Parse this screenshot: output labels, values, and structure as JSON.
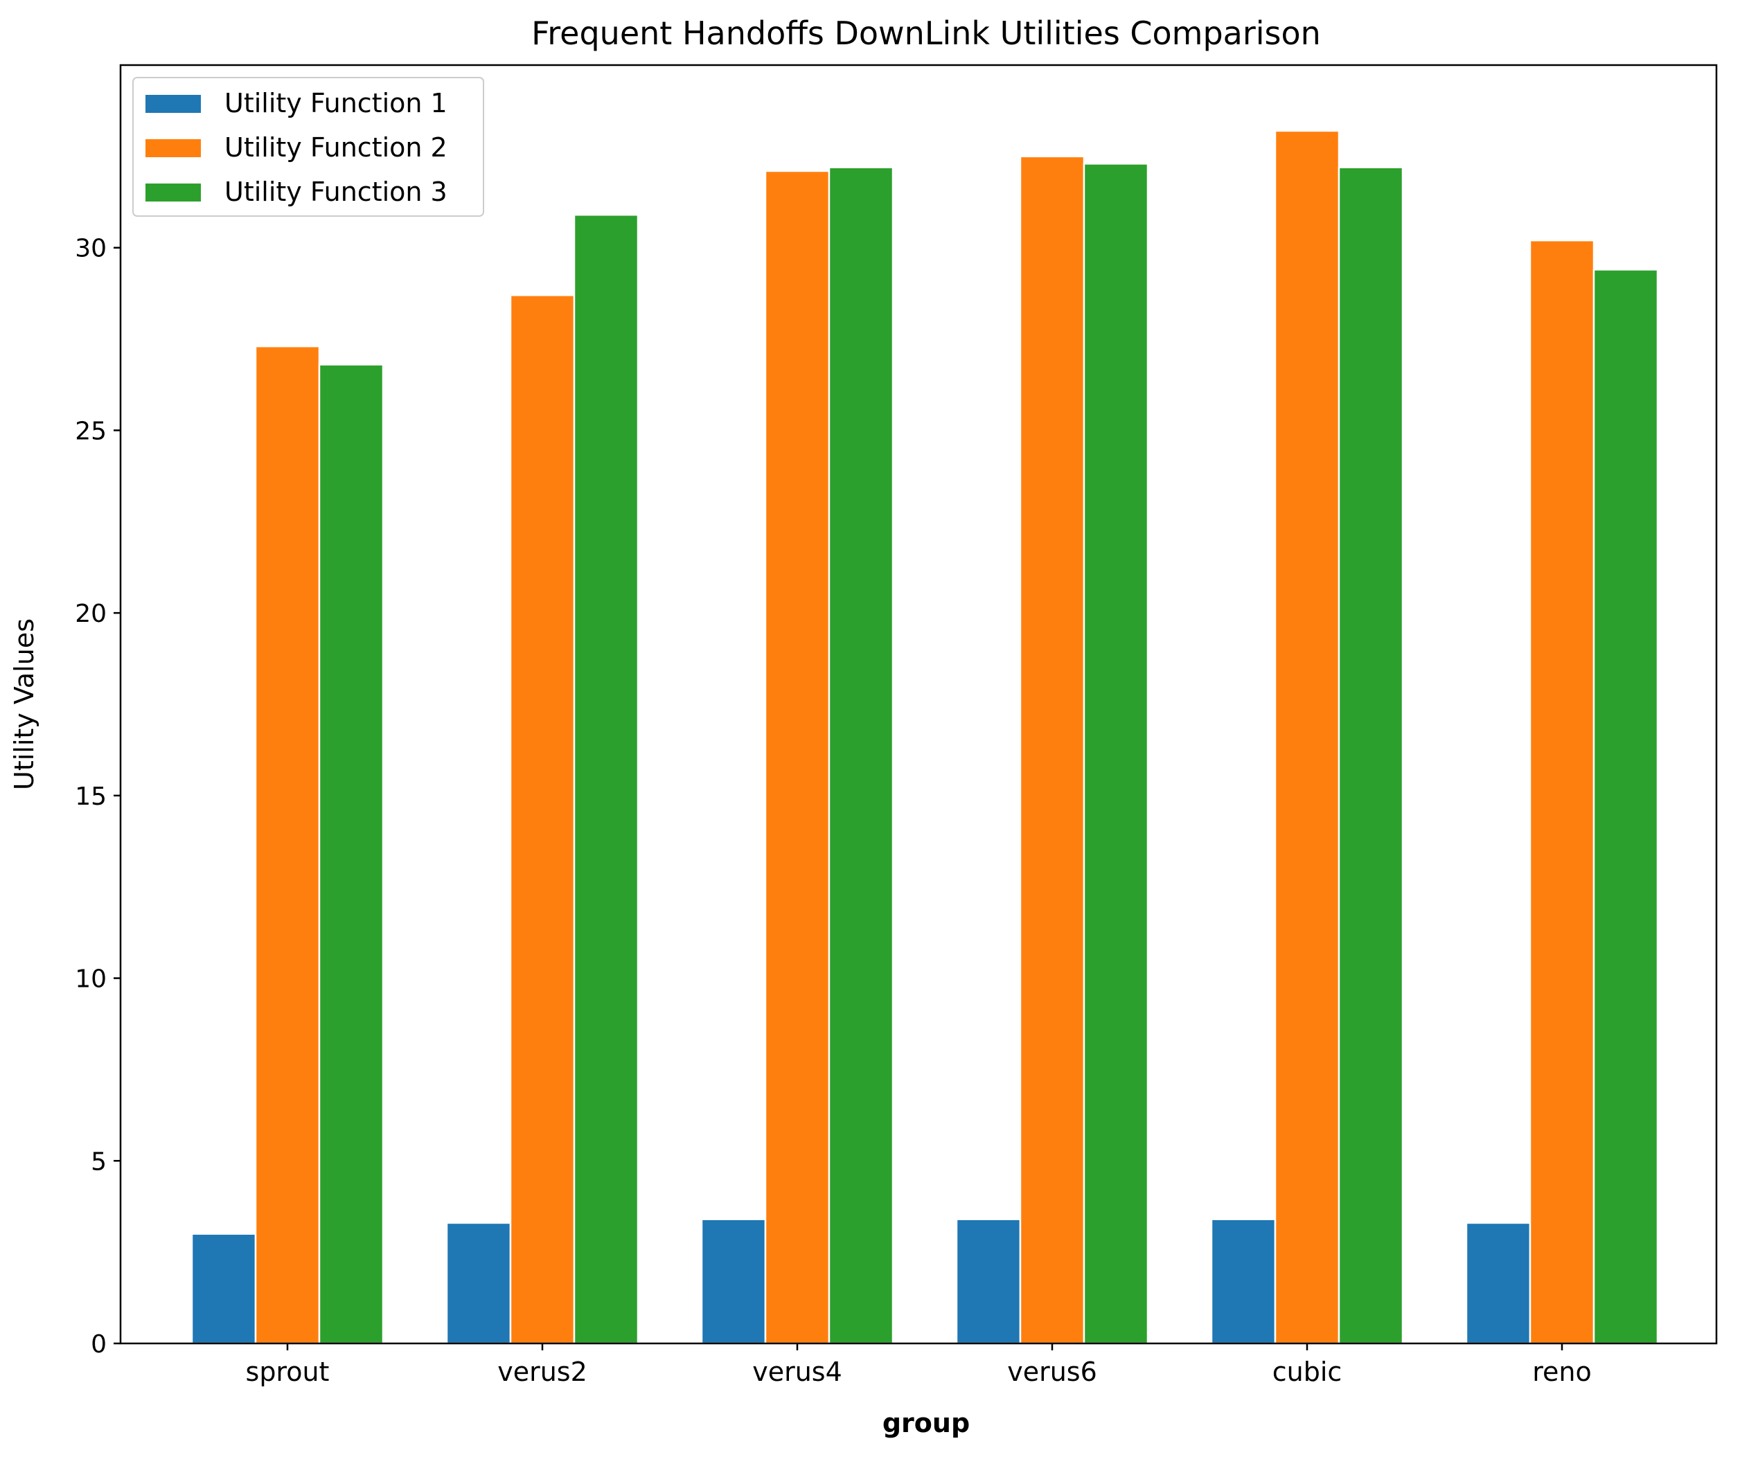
{
  "chart_data": {
    "type": "bar",
    "title": "Frequent Handoffs DownLink Utilities Comparison",
    "xlabel": "group",
    "ylabel": "Utility Values",
    "categories": [
      "sprout",
      "verus2",
      "verus4",
      "verus6",
      "cubic",
      "reno"
    ],
    "series": [
      {
        "name": "Utility Function 1",
        "color": "#1f77b4",
        "values": [
          3.0,
          3.3,
          3.4,
          3.4,
          3.4,
          3.3
        ]
      },
      {
        "name": "Utility Function 2",
        "color": "#ff7f0e",
        "values": [
          27.3,
          28.7,
          32.1,
          32.5,
          33.2,
          30.2
        ]
      },
      {
        "name": "Utility Function 3",
        "color": "#2ca02c",
        "values": [
          26.8,
          30.9,
          32.2,
          32.3,
          32.2,
          29.4
        ]
      }
    ],
    "ylim": [
      0,
      35
    ],
    "yticks": [
      0,
      5,
      10,
      15,
      20,
      25,
      30
    ],
    "grid": false,
    "legend_position": "top-left"
  }
}
